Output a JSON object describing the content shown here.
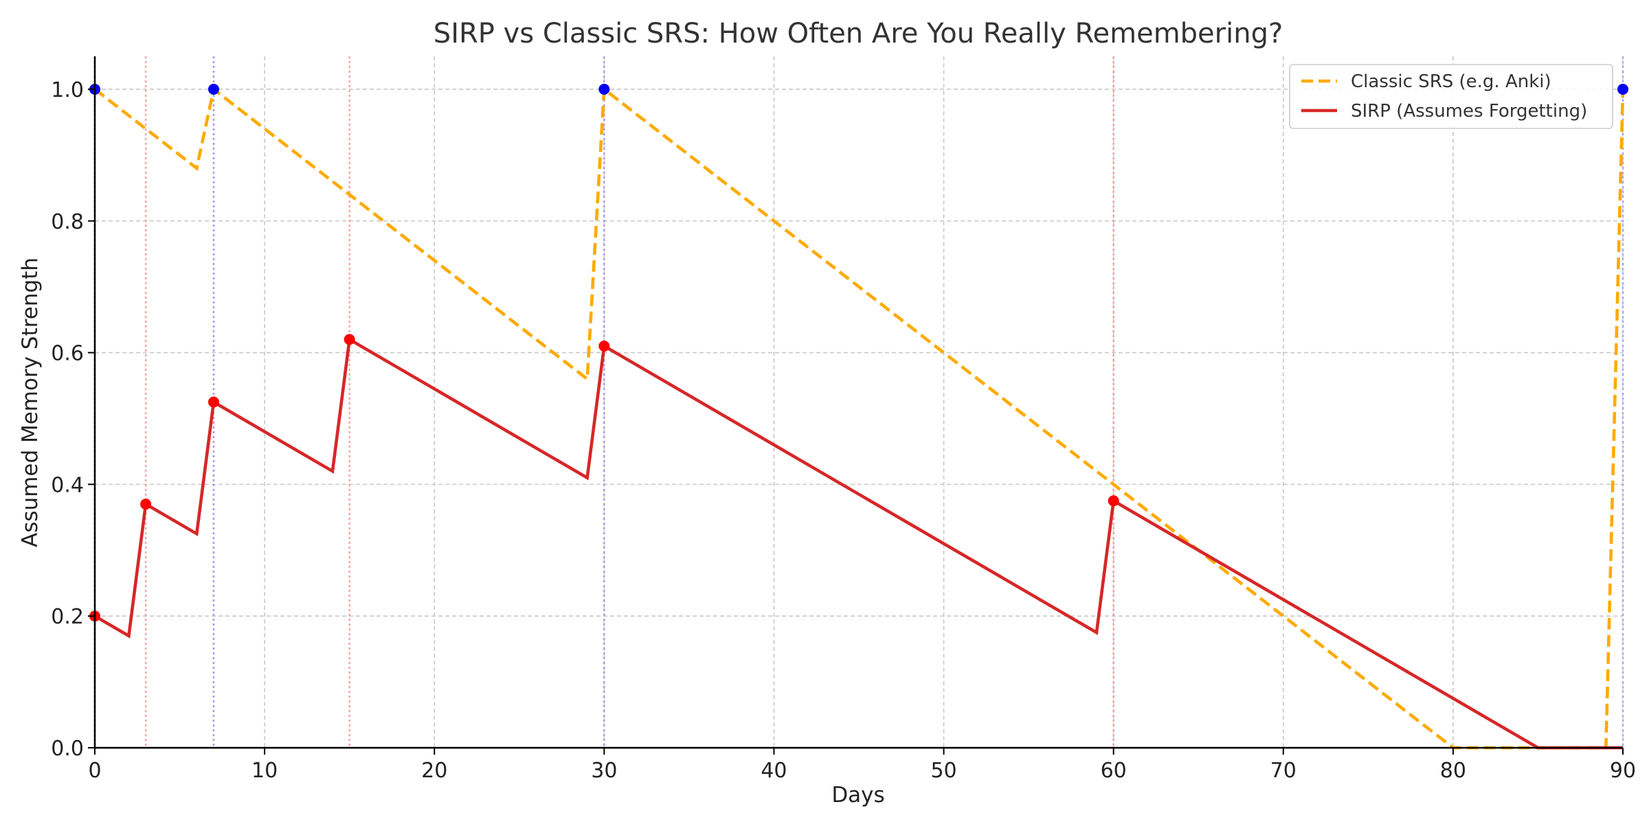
{
  "chart_data": {
    "type": "line",
    "title": "SIRP vs Classic SRS: How Often Are You Really Remembering?",
    "xlabel": "Days",
    "ylabel": "Assumed Memory Strength",
    "xlim": [
      0,
      90
    ],
    "ylim": [
      0,
      1.05
    ],
    "xticks": [
      0,
      10,
      20,
      30,
      40,
      50,
      60,
      70,
      80,
      90
    ],
    "xtick_labels": [
      "0",
      "10",
      "20",
      "30",
      "40",
      "50",
      "60",
      "70",
      "80",
      "90"
    ],
    "yticks": [
      0,
      0.2,
      0.4,
      0.6,
      0.8,
      1.0
    ],
    "ytick_labels": [
      "0.0",
      "0.2",
      "0.4",
      "0.6",
      "0.8",
      "1.0"
    ],
    "grid": true,
    "legend_position": "top-right",
    "series": [
      {
        "name": "Classic SRS (e.g. Anki)",
        "color": "#FFAA00",
        "line_style": "dashed",
        "points": [
          [
            0,
            1.0
          ],
          [
            6,
            0.88
          ],
          [
            7,
            1.0
          ],
          [
            29,
            0.56
          ],
          [
            30,
            1.0
          ],
          [
            80,
            0.0
          ],
          [
            89,
            0.0
          ],
          [
            90,
            1.0
          ]
        ],
        "review_days": [
          0,
          7,
          30,
          90
        ],
        "review_values": [
          1.0,
          1.0,
          1.0,
          1.0
        ],
        "marker_color": "#0000EE",
        "review_line_color": "#9999FF"
      },
      {
        "name": "SIRP (Assumes Forgetting)",
        "color": "#D62728",
        "line_style": "solid",
        "points": [
          [
            0,
            0.2
          ],
          [
            2,
            0.17
          ],
          [
            3,
            0.37
          ],
          [
            6,
            0.325
          ],
          [
            7,
            0.525
          ],
          [
            14,
            0.42
          ],
          [
            15,
            0.62
          ],
          [
            29,
            0.41
          ],
          [
            30,
            0.61
          ],
          [
            59,
            0.175
          ],
          [
            60,
            0.375
          ],
          [
            85,
            0.0
          ],
          [
            90,
            0.0
          ]
        ],
        "review_days": [
          0,
          3,
          7,
          15,
          30,
          60
        ],
        "review_values": [
          0.2,
          0.37,
          0.525,
          0.62,
          0.61,
          0.375
        ],
        "marker_color": "#FF0000",
        "review_line_color": "#FF8C8C"
      }
    ]
  }
}
